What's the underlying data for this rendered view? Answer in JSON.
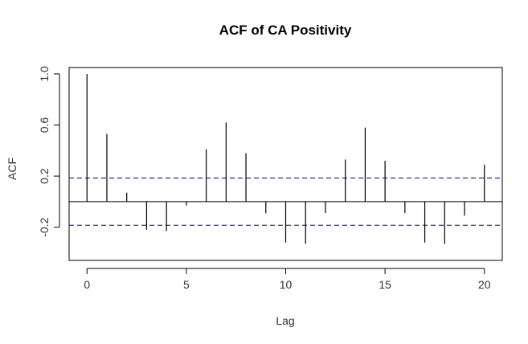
{
  "chart_data": {
    "type": "bar",
    "title": "ACF of CA Positivity",
    "xlabel": "Lag",
    "ylabel": "ACF",
    "xlim": [
      -0.9,
      20.9
    ],
    "ylim": [
      -0.46,
      1.05
    ],
    "x_ticks": [
      0,
      5,
      10,
      15,
      20
    ],
    "x_tick_labels": [
      "0",
      "5",
      "10",
      "15",
      "20"
    ],
    "y_ticks": [
      -0.2,
      0.2,
      0.6,
      1.0
    ],
    "y_tick_labels": [
      "-0.2",
      "0.2",
      "0.6",
      "1.0"
    ],
    "lags": [
      0,
      1,
      2,
      3,
      4,
      5,
      6,
      7,
      8,
      9,
      10,
      11,
      12,
      13,
      14,
      15,
      16,
      17,
      18,
      19,
      20
    ],
    "values": [
      1.0,
      0.53,
      0.07,
      -0.22,
      -0.23,
      -0.03,
      0.41,
      0.62,
      0.38,
      -0.09,
      -0.32,
      -0.33,
      -0.09,
      0.33,
      0.58,
      0.32,
      -0.09,
      -0.32,
      -0.33,
      -0.11,
      0.29
    ],
    "confidence_bound": 0.185,
    "grid": false,
    "legend": "none",
    "colors": {
      "bars": "#000000",
      "confidence_lines": "#00007f",
      "frame": "#000000"
    }
  }
}
